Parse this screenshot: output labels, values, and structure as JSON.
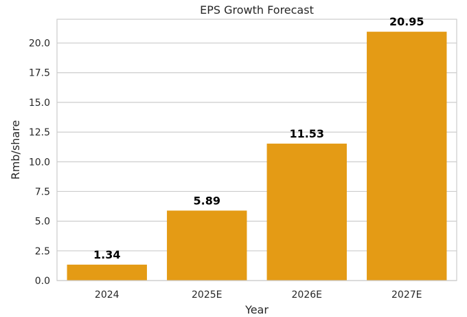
{
  "chart_data": {
    "type": "bar",
    "title": "EPS Growth Forecast",
    "xlabel": "Year",
    "ylabel": "Rmb/share",
    "categories": [
      "2024",
      "2025E",
      "2026E",
      "2027E"
    ],
    "values": [
      1.34,
      5.89,
      11.53,
      20.95
    ],
    "data_labels": [
      "1.34",
      "5.89",
      "11.53",
      "20.95"
    ],
    "ylim": [
      0,
      22.0
    ],
    "yticks": [
      0.0,
      2.5,
      5.0,
      7.5,
      10.0,
      12.5,
      15.0,
      17.5,
      20.0
    ],
    "ytick_labels": [
      "0.0",
      "2.5",
      "5.0",
      "7.5",
      "10.0",
      "12.5",
      "15.0",
      "17.5",
      "20.0"
    ],
    "grid": true,
    "bar_color": "#e49b15",
    "grid_color": "#cccccc",
    "frame_color": "#cccccc"
  }
}
